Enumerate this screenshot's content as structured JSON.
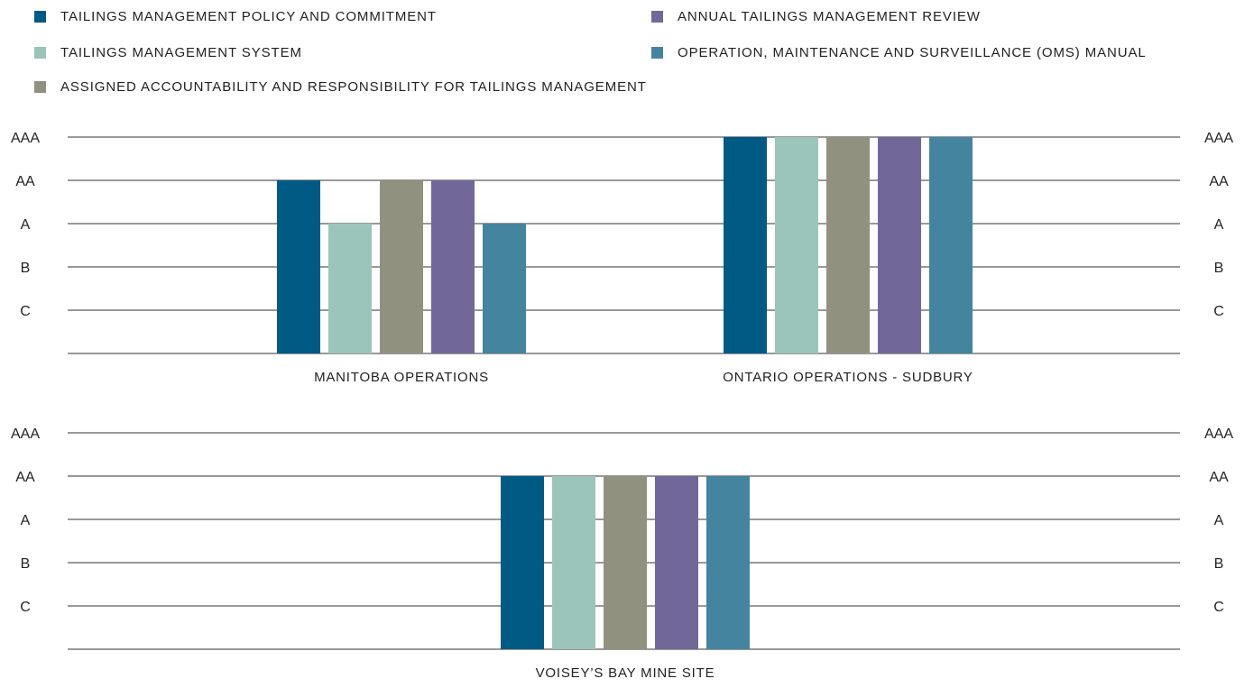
{
  "chart_data": {
    "type": "bar",
    "scale": [
      "C",
      "B",
      "A",
      "AA",
      "AAA"
    ],
    "legend": {
      "position": "top",
      "entries": [
        {
          "name": "TAILINGS MANAGEMENT POLICY AND COMMITMENT",
          "color": "#005a84"
        },
        {
          "name": "TAILINGS MANAGEMENT SYSTEM",
          "color": "#9bc4ba"
        },
        {
          "name": "ASSIGNED ACCOUNTABILITY AND RESPONSIBILITY FOR TAILINGS MANAGEMENT",
          "color": "#90917f"
        },
        {
          "name": "ANNUAL TAILINGS MANAGEMENT REVIEW",
          "color": "#716899"
        },
        {
          "name": "OPERATION, MAINTENANCE AND SURVEILLANCE (OMS) MANUAL",
          "color": "#44849f"
        }
      ]
    },
    "panels": [
      {
        "categories": [
          "MANITOBA OPERATIONS",
          "ONTARIO OPERATIONS - SUDBURY"
        ],
        "series_values": [
          [
            "AA",
            "AAA"
          ],
          [
            "A",
            "AAA"
          ],
          [
            "AA",
            "AAA"
          ],
          [
            "AA",
            "AAA"
          ],
          [
            "A",
            "AAA"
          ]
        ]
      },
      {
        "categories": [
          "VOISEY’S BAY MINE SITE"
        ],
        "series_values": [
          [
            "AA"
          ],
          [
            "AA"
          ],
          [
            "AA"
          ],
          [
            "AA"
          ],
          [
            "AA"
          ]
        ]
      }
    ],
    "grid": true
  }
}
